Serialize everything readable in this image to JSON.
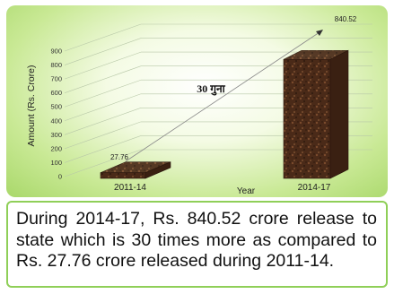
{
  "chart_data": {
    "type": "bar",
    "categories": [
      "2011-14",
      "2014-17"
    ],
    "values": [
      27.76,
      840.52
    ],
    "data_labels": [
      "27.76",
      "840.52"
    ],
    "xlabel": "Year",
    "ylabel": "Amount (Rs. Crore)",
    "yticks": [
      "0",
      "100",
      "200",
      "300",
      "400",
      "500",
      "600",
      "700",
      "800",
      "900"
    ],
    "ylim": [
      0,
      900
    ],
    "annotation": "30 गुना",
    "grid": true,
    "legend": "none"
  },
  "colors": {
    "panel_gradient_edge": "#a9d86a",
    "caption_border": "#8fcf58",
    "bar_fill": "#4a2a18"
  },
  "caption": "During 2014-17, Rs. 840.52 crore release to state which is 30 times more as compared to Rs. 27.76 crore released during 2011-14."
}
